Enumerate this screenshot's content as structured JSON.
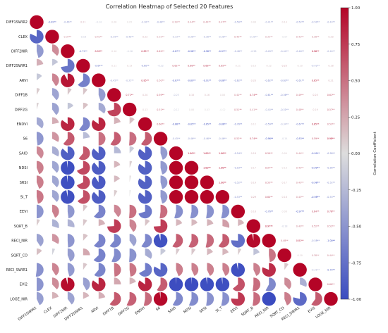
{
  "chart_data": {
    "type": "heatmap",
    "title": "Correlation Heatmap of Selected 20 Features",
    "xlabel": "",
    "ylabel": "",
    "features": [
      "DIFF1SWIR2",
      "CLEX",
      "DIFF2NIR",
      "DIFF2SWIR1",
      "ARVI",
      "DIFF1B",
      "DIFF2G",
      "ENDVI",
      "S6",
      "SAIO",
      "NDSI",
      "SRSI",
      "SI_T",
      "EEVI",
      "SQRT_B",
      "RECI_NIR",
      "SQRT_CO",
      "RECI_SWIR1",
      "EVI2",
      "LOGE_NIR"
    ],
    "matrix": [
      [
        1.0,
        -0.82,
        -0.46,
        0.21,
        -0.14,
        0.08,
        0.05,
        -0.36,
        -0.48,
        0.39,
        0.44,
        0.44,
        0.47,
        -0.5,
        0.08,
        -0.41,
        0.14,
        -0.52,
        -0.5,
        -0.43
      ],
      [
        -0.82,
        1.0,
        0.37,
        -0.16,
        0.41,
        -0.39,
        -0.4,
        0.22,
        0.33,
        -0.33,
        -0.38,
        -0.38,
        -0.38,
        0.43,
        -0.3,
        0.33,
        -0.07,
        0.41,
        0.38,
        0.2
      ],
      [
        -0.46,
        0.37,
        1.0,
        -0.72,
        0.92,
        0.1,
        -0.16,
        0.85,
        0.61,
        -0.87,
        -0.98,
        -0.98,
        -0.97,
        -0.48,
        -0.28,
        -0.49,
        -0.44,
        -0.46,
        0.96,
        -0.4
      ],
      [
        0.21,
        -0.16,
        -0.72,
        1.0,
        -0.64,
        0.11,
        0.13,
        -0.6,
        -0.22,
        0.61,
        0.68,
        0.68,
        0.65,
        0.11,
        0.1,
        0.12,
        0.25,
        0.1,
        -0.42,
        0.18
      ],
      [
        -0.14,
        0.41,
        0.92,
        -0.64,
        1.0,
        -0.45,
        -0.35,
        0.85,
        0.5,
        -0.87,
        -0.89,
        -0.91,
        -0.88,
        -0.62,
        0.2,
        -0.62,
        -0.63,
        -0.61,
        0.85,
        0.21
      ],
      [
        0.08,
        -0.39,
        0.1,
        0.11,
        -0.45,
        1.0,
        0.71,
        0.2,
        0.59,
        -0.25,
        0.18,
        0.16,
        0.08,
        0.4,
        0.74,
        -0.61,
        -0.56,
        0.49,
        0.25,
        0.61
      ],
      [
        0.05,
        -0.4,
        -0.16,
        0.13,
        -0.35,
        0.71,
        1.0,
        0.13,
        0.51,
        -0.12,
        0.06,
        0.03,
        -0.02,
        0.51,
        0.41,
        -0.4,
        -0.51,
        0.48,
        0.19,
        0.57
      ],
      [
        -0.36,
        0.22,
        0.85,
        -0.6,
        0.85,
        0.2,
        0.13,
        1.0,
        0.6,
        -0.86,
        -0.85,
        -0.85,
        -0.86,
        -0.7,
        0.12,
        -0.59,
        -0.34,
        -0.67,
        0.85,
        0.53
      ],
      [
        -0.48,
        0.33,
        0.61,
        -0.22,
        0.5,
        0.59,
        0.51,
        0.6,
        1.0,
        -0.45,
        -0.46,
        -0.46,
        -0.46,
        0.52,
        0.74,
        -0.96,
        -0.14,
        -0.83,
        0.59,
        0.98
      ],
      [
        0.39,
        -0.33,
        -0.87,
        0.61,
        -0.87,
        -0.25,
        -0.12,
        -0.86,
        -0.45,
        1.0,
        1.0,
        1.0,
        1.0,
        -0.54,
        0.18,
        0.59,
        0.09,
        0.44,
        -0.99,
        -0.58
      ],
      [
        0.44,
        -0.38,
        -0.98,
        0.68,
        -0.89,
        0.18,
        0.06,
        -0.85,
        -0.46,
        1.0,
        1.0,
        1.0,
        1.0,
        -0.53,
        0.17,
        0.57,
        0.1,
        0.43,
        -0.99,
        -0.56
      ],
      [
        0.44,
        -0.38,
        -0.98,
        0.68,
        -0.91,
        0.16,
        0.03,
        -0.85,
        -0.46,
        1.0,
        1.0,
        1.0,
        1.0,
        -0.52,
        0.19,
        0.53,
        0.17,
        0.43,
        -0.98,
        -0.52
      ],
      [
        0.47,
        -0.38,
        -0.97,
        0.65,
        -0.88,
        0.08,
        -0.02,
        -0.86,
        -0.46,
        1.0,
        1.0,
        1.0,
        1.0,
        -0.53,
        0.29,
        0.6,
        0.18,
        0.43,
        -0.98,
        -0.53
      ],
      [
        -0.5,
        0.43,
        -0.48,
        0.11,
        -0.62,
        0.4,
        0.51,
        -0.7,
        0.52,
        -0.54,
        -0.53,
        -0.52,
        -0.53,
        1.0,
        0.18,
        -0.76,
        0.08,
        -0.97,
        0.64,
        0.76
      ],
      [
        0.08,
        -0.3,
        -0.28,
        0.1,
        0.2,
        0.74,
        0.41,
        0.12,
        0.74,
        0.18,
        0.17,
        0.19,
        0.29,
        0.18,
        1.0,
        0.97,
        -0.18,
        0.43,
        0.52,
        0.52
      ],
      [
        -0.41,
        0.33,
        -0.49,
        0.12,
        -0.62,
        -0.61,
        -0.4,
        -0.59,
        -0.96,
        0.59,
        0.57,
        0.53,
        0.6,
        -0.76,
        0.97,
        1.0,
        0.48,
        0.81,
        -0.58,
        -1.0
      ],
      [
        0.14,
        -0.07,
        -0.44,
        0.25,
        -0.63,
        -0.56,
        -0.51,
        -0.34,
        -0.14,
        0.09,
        0.1,
        0.17,
        0.18,
        0.08,
        -0.18,
        0.48,
        1.0,
        0.1,
        0.38,
        0.44
      ],
      [
        -0.52,
        0.41,
        -0.46,
        0.1,
        -0.61,
        0.49,
        0.48,
        -0.67,
        -0.83,
        0.44,
        0.43,
        0.43,
        0.43,
        -0.97,
        0.43,
        0.81,
        0.1,
        1.0,
        -0.31,
        -0.79
      ],
      [
        -0.5,
        0.38,
        0.96,
        -0.42,
        0.85,
        0.25,
        0.19,
        0.85,
        0.59,
        -0.99,
        -0.99,
        -0.98,
        -0.98,
        0.64,
        0.52,
        -0.58,
        0.38,
        -0.31,
        1.0,
        0.6
      ],
      [
        -0.43,
        0.2,
        -0.4,
        0.18,
        0.21,
        0.61,
        0.57,
        0.53,
        0.98,
        -0.58,
        -0.56,
        -0.52,
        -0.53,
        0.76,
        0.52,
        -1.0,
        0.44,
        -0.79,
        0.6,
        1.0
      ]
    ],
    "lower_triangle": "pie",
    "upper_triangle": "text",
    "significance_marker": "**",
    "colormap": "coolwarm",
    "colors": {
      "low": "#3b4cc0",
      "mid": "#dddddd",
      "high": "#b40426"
    },
    "colorbar": {
      "label": "Correlation Coefficient",
      "range": [
        -1.0,
        1.0
      ],
      "ticks": [
        "1.00",
        "0.75",
        "0.50",
        "0.25",
        "0.00",
        "-0.25",
        "-0.50",
        "-0.75",
        "-1.00"
      ]
    }
  }
}
